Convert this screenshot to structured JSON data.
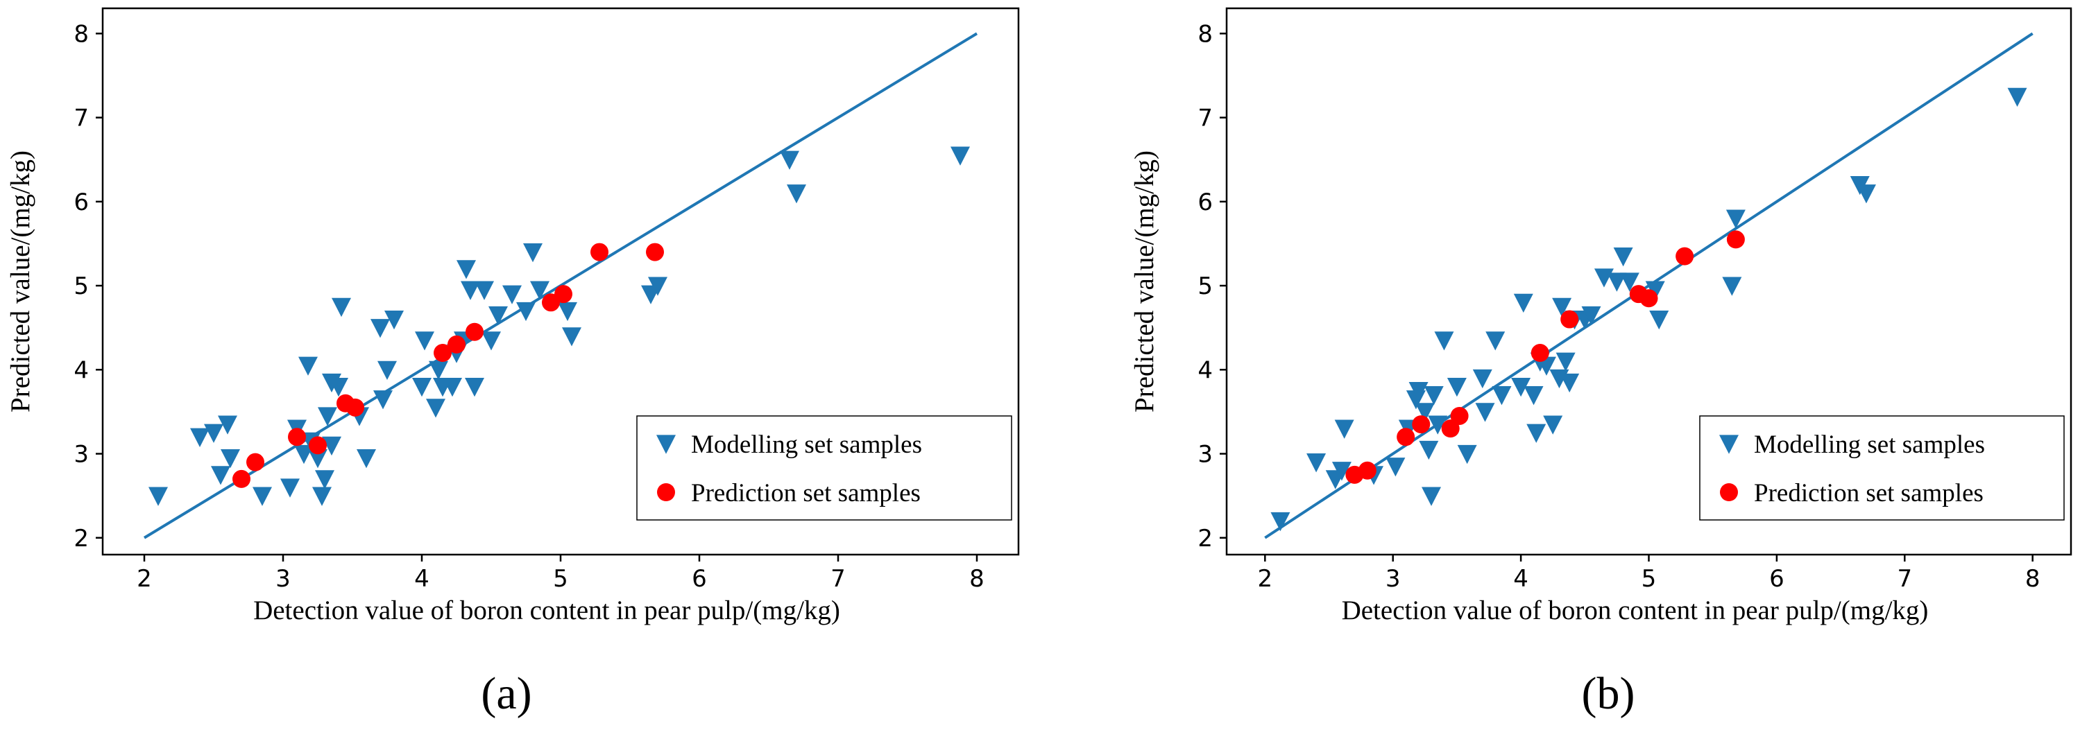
{
  "figure": {
    "panel_labels": [
      "(a)",
      "(b)"
    ]
  },
  "colors": {
    "modelling": "#1f77b4",
    "prediction": "#ff0000",
    "line": "#1f77b4"
  },
  "chart_data": [
    {
      "type": "scatter",
      "panel": "(a)",
      "title": "",
      "xlabel": "Detection value of boron content in pear pulp/(mg/kg)",
      "ylabel": "Predicted value/(mg/kg)",
      "xlim": [
        1.7,
        8.3
      ],
      "ylim": [
        1.8,
        8.3
      ],
      "xticks": [
        2,
        3,
        4,
        5,
        6,
        7,
        8
      ],
      "yticks": [
        2,
        3,
        4,
        5,
        6,
        7,
        8
      ],
      "xtick_labels": [
        "2",
        "3",
        "4",
        "5",
        "6",
        "7",
        "8"
      ],
      "ytick_labels": [
        "2",
        "3",
        "4",
        "5",
        "6",
        "7",
        "8"
      ],
      "legend_position": "lower-right",
      "reference_line": {
        "x": [
          2,
          8
        ],
        "y": [
          2,
          8
        ]
      },
      "series": [
        {
          "name": "Modelling set samples",
          "marker": "triangle-down",
          "points": [
            [
              2.1,
              2.5
            ],
            [
              2.4,
              3.2
            ],
            [
              2.5,
              3.25
            ],
            [
              2.55,
              2.75
            ],
            [
              2.6,
              3.35
            ],
            [
              2.62,
              2.95
            ],
            [
              2.85,
              2.5
            ],
            [
              3.05,
              2.6
            ],
            [
              3.1,
              3.3
            ],
            [
              3.15,
              3.0
            ],
            [
              3.18,
              4.05
            ],
            [
              3.2,
              3.15
            ],
            [
              3.25,
              2.95
            ],
            [
              3.28,
              2.5
            ],
            [
              3.3,
              2.7
            ],
            [
              3.32,
              3.45
            ],
            [
              3.35,
              3.1
            ],
            [
              3.35,
              3.85
            ],
            [
              3.4,
              3.8
            ],
            [
              3.42,
              4.75
            ],
            [
              3.55,
              3.45
            ],
            [
              3.6,
              2.95
            ],
            [
              3.7,
              4.5
            ],
            [
              3.72,
              3.65
            ],
            [
              3.75,
              4.0
            ],
            [
              3.8,
              4.6
            ],
            [
              4.0,
              3.8
            ],
            [
              4.02,
              4.35
            ],
            [
              4.1,
              3.55
            ],
            [
              4.12,
              4.0
            ],
            [
              4.15,
              3.8
            ],
            [
              4.22,
              3.8
            ],
            [
              4.25,
              4.2
            ],
            [
              4.3,
              4.35
            ],
            [
              4.32,
              5.2
            ],
            [
              4.35,
              4.95
            ],
            [
              4.38,
              3.8
            ],
            [
              4.45,
              4.95
            ],
            [
              4.5,
              4.35
            ],
            [
              4.55,
              4.65
            ],
            [
              4.65,
              4.9
            ],
            [
              4.75,
              4.7
            ],
            [
              4.8,
              5.4
            ],
            [
              4.85,
              4.95
            ],
            [
              5.05,
              4.7
            ],
            [
              5.08,
              4.4
            ],
            [
              5.65,
              4.9
            ],
            [
              5.7,
              5.0
            ],
            [
              6.65,
              6.5
            ],
            [
              6.7,
              6.1
            ],
            [
              7.88,
              6.55
            ]
          ]
        },
        {
          "name": "Prediction set samples",
          "marker": "circle",
          "points": [
            [
              2.7,
              2.7
            ],
            [
              2.8,
              2.9
            ],
            [
              3.1,
              3.2
            ],
            [
              3.25,
              3.1
            ],
            [
              3.45,
              3.6
            ],
            [
              3.52,
              3.55
            ],
            [
              4.15,
              4.2
            ],
            [
              4.25,
              4.3
            ],
            [
              4.38,
              4.45
            ],
            [
              4.93,
              4.8
            ],
            [
              5.02,
              4.9
            ],
            [
              5.28,
              5.4
            ],
            [
              5.68,
              5.4
            ]
          ]
        }
      ]
    },
    {
      "type": "scatter",
      "panel": "(b)",
      "title": "",
      "xlabel": "Detection value of boron content in pear pulp/(mg/kg)",
      "ylabel": "Predicted value/(mg/kg)",
      "xlim": [
        1.7,
        8.3
      ],
      "ylim": [
        1.8,
        8.3
      ],
      "xticks": [
        2,
        3,
        4,
        5,
        6,
        7,
        8
      ],
      "yticks": [
        2,
        3,
        4,
        5,
        6,
        7,
        8
      ],
      "xtick_labels": [
        "2",
        "3",
        "4",
        "5",
        "6",
        "7",
        "8"
      ],
      "ytick_labels": [
        "2",
        "3",
        "4",
        "5",
        "6",
        "7",
        "8"
      ],
      "legend_position": "lower-right",
      "reference_line": {
        "x": [
          2,
          8
        ],
        "y": [
          2,
          8
        ]
      },
      "series": [
        {
          "name": "Modelling set samples",
          "marker": "triangle-down",
          "points": [
            [
              2.12,
              2.2
            ],
            [
              2.4,
              2.9
            ],
            [
              2.55,
              2.7
            ],
            [
              2.6,
              2.8
            ],
            [
              2.62,
              3.3
            ],
            [
              2.85,
              2.75
            ],
            [
              3.02,
              2.85
            ],
            [
              3.12,
              3.3
            ],
            [
              3.18,
              3.65
            ],
            [
              3.2,
              3.75
            ],
            [
              3.25,
              3.5
            ],
            [
              3.28,
              3.05
            ],
            [
              3.3,
              2.5
            ],
            [
              3.32,
              3.7
            ],
            [
              3.35,
              3.35
            ],
            [
              3.4,
              4.35
            ],
            [
              3.5,
              3.8
            ],
            [
              3.58,
              3.0
            ],
            [
              3.7,
              3.9
            ],
            [
              3.72,
              3.5
            ],
            [
              3.8,
              4.35
            ],
            [
              3.85,
              3.7
            ],
            [
              4.0,
              3.8
            ],
            [
              4.02,
              4.8
            ],
            [
              4.1,
              3.7
            ],
            [
              4.12,
              3.25
            ],
            [
              4.15,
              4.1
            ],
            [
              4.2,
              4.05
            ],
            [
              4.25,
              3.35
            ],
            [
              4.3,
              3.9
            ],
            [
              4.32,
              4.75
            ],
            [
              4.35,
              4.1
            ],
            [
              4.38,
              3.85
            ],
            [
              4.42,
              4.6
            ],
            [
              4.5,
              4.6
            ],
            [
              4.55,
              4.65
            ],
            [
              4.65,
              5.1
            ],
            [
              4.75,
              5.05
            ],
            [
              4.8,
              5.35
            ],
            [
              4.85,
              5.05
            ],
            [
              5.05,
              4.95
            ],
            [
              5.08,
              4.6
            ],
            [
              5.65,
              5.0
            ],
            [
              5.68,
              5.8
            ],
            [
              6.65,
              6.2
            ],
            [
              6.7,
              6.1
            ],
            [
              7.88,
              7.25
            ]
          ]
        },
        {
          "name": "Prediction set samples",
          "marker": "circle",
          "points": [
            [
              2.7,
              2.75
            ],
            [
              2.8,
              2.8
            ],
            [
              3.1,
              3.2
            ],
            [
              3.22,
              3.35
            ],
            [
              3.45,
              3.3
            ],
            [
              3.52,
              3.45
            ],
            [
              4.15,
              4.2
            ],
            [
              4.38,
              4.6
            ],
            [
              4.92,
              4.9
            ],
            [
              5.0,
              4.85
            ],
            [
              5.28,
              5.35
            ],
            [
              5.68,
              5.55
            ]
          ]
        }
      ]
    }
  ]
}
